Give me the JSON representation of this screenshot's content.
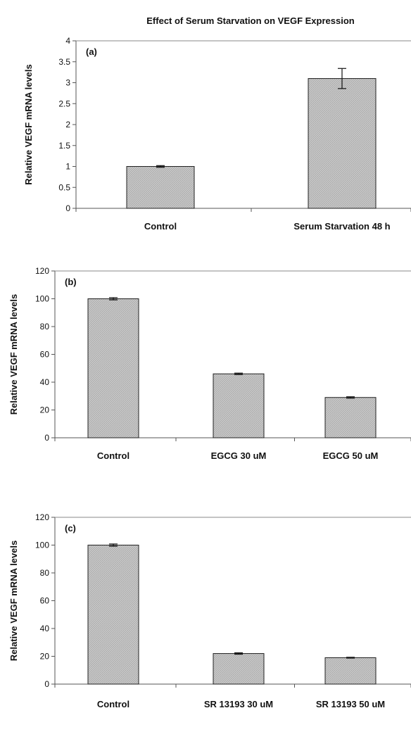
{
  "figure_title": "Effect of Serum Starvation on VEGF Expression",
  "colors": {
    "bar_fill": "#c8c8c8",
    "bar_stroke": "#222222",
    "axis": "#555555"
  },
  "chart_data": [
    {
      "type": "bar",
      "panel_label": "(a)",
      "title": "Effect of Serum Starvation on VEGF Expression",
      "ylabel": "Relative VEGF mRNA levels",
      "xlabel": "",
      "categories": [
        "Control",
        "Serum Starvation 48 h"
      ],
      "values": [
        1.0,
        3.1
      ],
      "errors": [
        0.02,
        0.24
      ],
      "ylim": [
        0,
        4
      ],
      "yticks": [
        0,
        0.5,
        1,
        1.5,
        2,
        2.5,
        3,
        3.5,
        4
      ],
      "grid": false
    },
    {
      "type": "bar",
      "panel_label": "(b)",
      "title": "",
      "ylabel": "Relative VEGF mRNA levels",
      "xlabel": "",
      "categories": [
        "Control",
        "EGCG 30 uM",
        "EGCG 50 uM"
      ],
      "values": [
        100,
        46,
        29
      ],
      "errors": [
        0.8,
        0.5,
        0.5
      ],
      "ylim": [
        0,
        120
      ],
      "yticks": [
        0,
        20,
        40,
        60,
        80,
        100,
        120
      ],
      "grid": false
    },
    {
      "type": "bar",
      "panel_label": "(c)",
      "title": "",
      "ylabel": "Relative VEGF mRNA levels",
      "xlabel": "",
      "categories": [
        "Control",
        "SR 13193 30 uM",
        "SR 13193 50 uM"
      ],
      "values": [
        100,
        22,
        19
      ],
      "errors": [
        0.8,
        0.5,
        0.3
      ],
      "ylim": [
        0,
        120
      ],
      "yticks": [
        0,
        20,
        40,
        60,
        80,
        100,
        120
      ],
      "grid": false
    }
  ]
}
